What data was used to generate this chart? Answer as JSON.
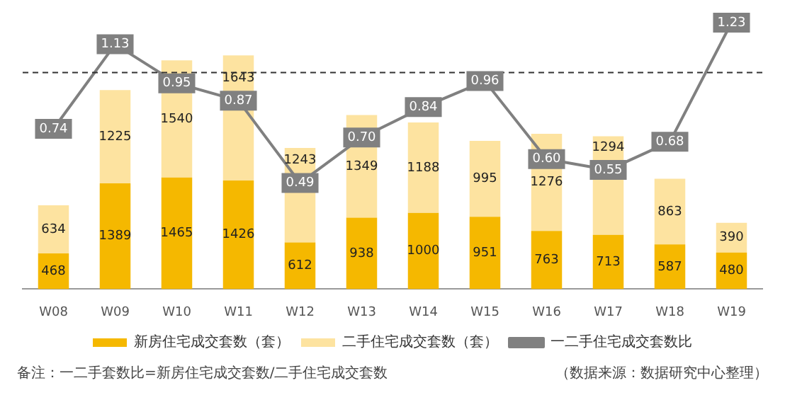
{
  "chart_data": {
    "type": "bar",
    "stacked": true,
    "data_labels": true,
    "legend": "bottom",
    "marker": "square",
    "categories": [
      "W08",
      "W09",
      "W10",
      "W11",
      "W12",
      "W13",
      "W14",
      "W15",
      "W16",
      "W17",
      "W18",
      "W19"
    ],
    "series": [
      {
        "name": "新房住宅成交套数（套）",
        "color": "#f5b800",
        "values": [
          468,
          1389,
          1465,
          1426,
          612,
          938,
          1000,
          951,
          763,
          713,
          587,
          480
        ]
      },
      {
        "name": "二手住宅成交套数（套）",
        "color": "#fde3a0",
        "values": [
          634,
          1225,
          1540,
          1643,
          1243,
          1349,
          1188,
          995,
          1276,
          1294,
          863,
          390
        ]
      },
      {
        "name": "一二手住宅成交套数比",
        "type": "line",
        "axis": "y2",
        "color": "#808080",
        "values": [
          0.74,
          1.13,
          0.95,
          0.87,
          0.49,
          0.7,
          0.84,
          0.96,
          0.6,
          0.55,
          0.68,
          1.23
        ],
        "value_labels": [
          "0.74",
          "1.13",
          "0.95",
          "0.87",
          "0.49",
          "0.70",
          "0.84",
          "0.96",
          "0.60",
          "0.55",
          "0.68",
          "1.23"
        ]
      }
    ],
    "ref_lines": [
      {
        "axis": "y2",
        "value": 1,
        "line_style": "dashed",
        "color": "#333333"
      }
    ],
    "annotations": [
      "备注：一二手套数比=新房住宅成交套数/二手住宅成交套数",
      "（数据来源：数据研究中心整理）"
    ]
  }
}
